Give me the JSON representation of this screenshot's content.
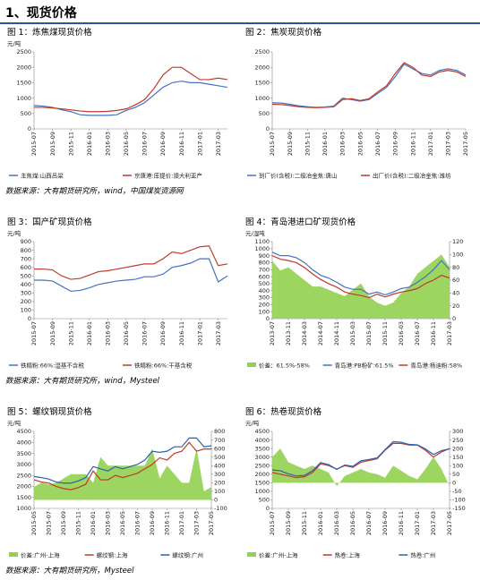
{
  "section_title": "1、现货价格",
  "sources": [
    "数据来源：大有期货研究所，wind，中国煤炭资源网",
    "数据来源：大有期货研究所，wind，Mysteel",
    "数据来源：大有期货研究所，Mysteel"
  ],
  "chart_data": [
    {
      "type": "line",
      "caption": "图 1：炼焦煤现货价格",
      "y_label": "元/吨",
      "categories": [
        "2015-07",
        null,
        "2015-09",
        null,
        "2015-11",
        null,
        "2016-01",
        null,
        "2016-03",
        null,
        "2016-05",
        null,
        "2016-07",
        null,
        "2016-09",
        null,
        "2016-11",
        null,
        "2017-01",
        null,
        "2017-03",
        null
      ],
      "ylim": [
        0,
        2500
      ],
      "yticks": [
        0,
        500,
        1000,
        1500,
        2000,
        2500
      ],
      "series": [
        {
          "name": "主焦煤:山西吕梁",
          "color": "#4472c4",
          "values": [
            760,
            740,
            700,
            620,
            560,
            460,
            440,
            440,
            440,
            460,
            600,
            700,
            850,
            1100,
            1350,
            1500,
            1550,
            1500,
            1500,
            1450,
            1400,
            1350
          ]
        },
        {
          "name": "京唐港:库提价:澳大利亚产",
          "color": "#c0392b",
          "values": [
            700,
            700,
            680,
            650,
            620,
            580,
            560,
            560,
            570,
            600,
            650,
            780,
            950,
            1300,
            1750,
            2000,
            2000,
            1800,
            1600,
            1600,
            1650,
            1600
          ]
        }
      ]
    },
    {
      "type": "line",
      "caption": "图 2：焦炭现货价格",
      "categories": [
        "2015-07",
        null,
        "2015-09",
        null,
        "2015-11",
        null,
        "2016-01",
        null,
        "2016-03",
        null,
        "2016-05",
        null,
        "2016-07",
        null,
        "2016-09",
        null,
        "2016-11",
        null,
        "2017-01",
        null,
        "2017-03",
        null,
        "2017-05"
      ],
      "ylim": [
        0,
        2500
      ],
      "yticks": [
        0,
        500,
        1000,
        1500,
        2000,
        2500
      ],
      "series": [
        {
          "name": "到厂价(含税):二级冶金焦:唐山",
          "color": "#4472c4",
          "values": [
            850,
            840,
            800,
            750,
            720,
            700,
            710,
            740,
            1000,
            950,
            900,
            950,
            1150,
            1350,
            1700,
            2100,
            1950,
            1800,
            1750,
            1900,
            1950,
            1900,
            1750
          ]
        },
        {
          "name": "出厂价(含税):二级冶金焦:潍坊",
          "color": "#c0392b",
          "values": [
            800,
            790,
            760,
            720,
            700,
            690,
            700,
            720,
            950,
            980,
            920,
            980,
            1200,
            1400,
            1800,
            2150,
            2000,
            1750,
            1700,
            1850,
            1900,
            1850,
            1700
          ]
        }
      ]
    },
    {
      "type": "line",
      "caption": "图 3：国产矿现货价格",
      "y_label": "元/吨",
      "categories": [
        "2015-07",
        null,
        "2015-09",
        null,
        "2015-11",
        null,
        "2016-01",
        null,
        "2016-03",
        null,
        "2016-05",
        null,
        "2016-07",
        null,
        "2016-09",
        null,
        "2016-11",
        null,
        "2017-01",
        null,
        "2017-03",
        null
      ],
      "ylim": [
        0,
        900
      ],
      "yticks": [
        0,
        100,
        200,
        300,
        400,
        500,
        600,
        700,
        800,
        900
      ],
      "series": [
        {
          "name": "铁精粉:66%:湿基不含税",
          "color": "#4472c4",
          "values": [
            450,
            450,
            440,
            380,
            320,
            330,
            360,
            400,
            420,
            440,
            450,
            460,
            490,
            490,
            520,
            600,
            620,
            650,
            700,
            700,
            430,
            500
          ]
        },
        {
          "name": "铁精粉:66%:干基含税",
          "color": "#c0392b",
          "values": [
            580,
            580,
            570,
            500,
            460,
            470,
            510,
            550,
            560,
            580,
            600,
            620,
            640,
            640,
            700,
            780,
            760,
            800,
            840,
            850,
            620,
            640
          ]
        }
      ]
    },
    {
      "type": "line",
      "caption": "图 4：青岛港进口矿现货价格",
      "y_label": "元/湿吨",
      "categories": [
        "2013-07",
        null,
        "2013-11",
        null,
        "2014-03",
        null,
        "2014-07",
        null,
        "2014-11",
        null,
        "2015-03",
        null,
        "2015-07",
        null,
        "2015-11",
        null,
        "2016-03",
        null,
        "2016-07",
        null,
        "2016-11",
        null,
        "2017-03"
      ],
      "ylim": [
        0,
        1100
      ],
      "yticks": [
        0,
        100,
        200,
        300,
        400,
        500,
        600,
        700,
        800,
        900,
        1000,
        1100
      ],
      "y2lim": [
        0,
        120
      ],
      "y2ticks": [
        0,
        20,
        40,
        60,
        80,
        100,
        120
      ],
      "series": [
        {
          "name": "价差：61.5%-58%",
          "color": "#92d050",
          "kind": "area",
          "axis": "y2",
          "values": [
            90,
            75,
            80,
            70,
            60,
            50,
            50,
            45,
            40,
            35,
            45,
            55,
            35,
            25,
            20,
            25,
            40,
            50,
            70,
            80,
            90,
            100,
            80
          ]
        },
        {
          "name": "青岛港:PB粉矿:61.5%",
          "color": "#4472c4",
          "values": [
            950,
            900,
            900,
            870,
            800,
            700,
            620,
            580,
            520,
            450,
            420,
            420,
            350,
            380,
            340,
            380,
            430,
            450,
            520,
            600,
            700,
            830,
            700
          ]
        },
        {
          "name": "青岛港:杨迪粉:58%",
          "color": "#c0392b",
          "values": [
            900,
            850,
            830,
            800,
            730,
            640,
            560,
            500,
            450,
            380,
            350,
            330,
            300,
            350,
            310,
            350,
            380,
            400,
            430,
            500,
            550,
            620,
            580
          ]
        }
      ]
    },
    {
      "type": "line",
      "caption": "图 5：螺纹钢现货价格",
      "y_label": "元/吨",
      "categories": [
        "2015-05",
        null,
        "2015-07",
        null,
        "2015-09",
        null,
        "2015-11",
        null,
        "2016-01",
        null,
        "2016-03",
        null,
        "2016-05",
        null,
        "2016-07",
        null,
        "2016-09",
        null,
        "2016-11",
        null,
        "2017-01",
        null,
        "2017-03",
        null,
        "2017-05"
      ],
      "ylim": [
        1000,
        4500
      ],
      "yticks": [
        1000,
        1500,
        2000,
        2500,
        3000,
        3500,
        4000,
        4500
      ],
      "y2lim": [
        -100,
        800
      ],
      "y2ticks": [
        -100,
        0,
        100,
        200,
        300,
        400,
        500,
        600,
        700,
        800
      ],
      "series": [
        {
          "name": "价差:广州-上海",
          "color": "#92d050",
          "kind": "area",
          "axis": "y2",
          "values": [
            150,
            200,
            180,
            200,
            250,
            300,
            300,
            300,
            200,
            500,
            400,
            400,
            400,
            400,
            400,
            400,
            600,
            250,
            400,
            300,
            200,
            200,
            600,
            100,
            150
          ]
        },
        {
          "name": "螺纹钢:上海",
          "color": "#c0392b",
          "values": [
            2300,
            2200,
            2150,
            2000,
            1900,
            1850,
            1950,
            2100,
            2700,
            2300,
            2300,
            2500,
            2400,
            2500,
            2600,
            2800,
            3000,
            3300,
            3200,
            3500,
            3600,
            4000,
            3600,
            3700,
            3700
          ]
        },
        {
          "name": "螺纹钢:广州",
          "color": "#2e5fb0",
          "values": [
            2450,
            2400,
            2330,
            2200,
            2150,
            2150,
            2250,
            2400,
            2900,
            2800,
            2700,
            2900,
            2800,
            2900,
            3000,
            3200,
            3600,
            3550,
            3600,
            3800,
            3800,
            4200,
            4200,
            3800,
            3850
          ]
        }
      ]
    },
    {
      "type": "line",
      "caption": "图 6：热卷现货价格",
      "y_label": "元/吨",
      "categories": [
        "2015-07",
        null,
        "2015-09",
        null,
        "2015-11",
        null,
        "2016-01",
        null,
        "2016-03",
        null,
        "2016-05",
        null,
        "2016-07",
        null,
        "2016-09",
        null,
        "2016-11",
        null,
        "2017-01",
        null,
        "2017-03",
        null,
        "2017-05"
      ],
      "ylim": [
        0,
        4500
      ],
      "yticks": [
        0,
        500,
        1000,
        1500,
        2000,
        2500,
        3000,
        3500,
        4000,
        4500
      ],
      "y2lim": [
        -150,
        300
      ],
      "y2ticks": [
        -150,
        -100,
        -50,
        0,
        50,
        100,
        150,
        200,
        250,
        300
      ],
      "series": [
        {
          "name": "价差:广州-上海",
          "color": "#92d050",
          "kind": "area",
          "axis": "y2",
          "values": [
            150,
            200,
            120,
            100,
            80,
            100,
            80,
            60,
            -20,
            40,
            60,
            80,
            60,
            50,
            30,
            100,
            70,
            40,
            20,
            80,
            150,
            80,
            -20
          ]
        },
        {
          "name": "热卷:上海",
          "color": "#c0392b",
          "values": [
            2100,
            2000,
            1900,
            1800,
            1850,
            2100,
            2600,
            2500,
            2300,
            2500,
            2400,
            2700,
            2800,
            2900,
            3400,
            3800,
            3800,
            3700,
            3700,
            3400,
            3000,
            3300,
            3500
          ]
        },
        {
          "name": "热卷:广州",
          "color": "#2e5fb0",
          "values": [
            2250,
            2200,
            2020,
            1900,
            1930,
            2200,
            2680,
            2560,
            2280,
            2540,
            2460,
            2780,
            2860,
            2950,
            3430,
            3900,
            3870,
            3740,
            3720,
            3480,
            3150,
            3380,
            3480
          ]
        }
      ]
    }
  ]
}
